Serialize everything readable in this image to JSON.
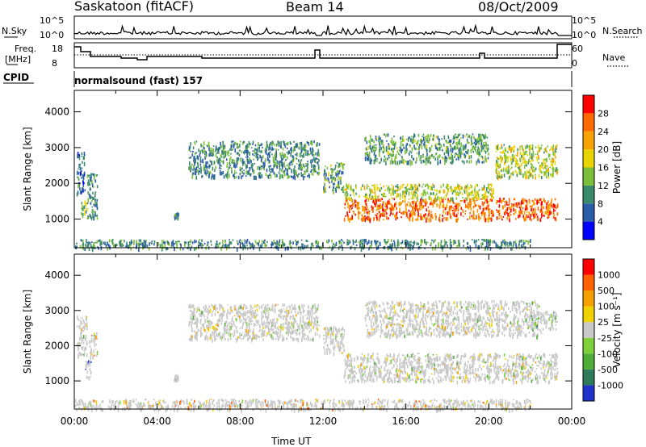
{
  "header": {
    "title": "Saskatoon (fitACF)",
    "beam": "Beam 14",
    "date": "08/Oct/2009"
  },
  "top_panel": {
    "left_label": "N.Sky",
    "right_label": "N.Search",
    "left_ticks": [
      "10^5",
      "10^0"
    ],
    "right_ticks": [
      "10^5",
      "10^0"
    ]
  },
  "freq_panel": {
    "left_label_line1": "Freq.",
    "left_label_line2": "[MHz]",
    "right_label": "Nave",
    "left_ticks": [
      "18",
      "8"
    ],
    "right_ticks": [
      "60",
      "0"
    ]
  },
  "cpid": {
    "label": "CPID",
    "value": "normalsound (fast) 157"
  },
  "colors": {
    "power_scale": [
      "#0000ff",
      "#2b5ca8",
      "#3c8a6e",
      "#7bbf3a",
      "#e8d400",
      "#f7a200",
      "#ff6a00",
      "#ff0000"
    ],
    "velocity_scale": [
      "#2233cc",
      "#2f7a5a",
      "#4fae3a",
      "#7ed13c",
      "#c8c8c8",
      "#f0d200",
      "#f5a000",
      "#ff6000",
      "#ff0000"
    ]
  },
  "chart_data": [
    {
      "type": "heatmap",
      "name": "power",
      "ylabel": "Slant Range [km]",
      "yticks": [
        1000,
        2000,
        3000,
        4000
      ],
      "ylim": [
        200,
        4600
      ],
      "xlim": [
        "00:00",
        "24:00"
      ],
      "colorbar_label": "Power [dB]",
      "colorbar_ticks": [
        4,
        8,
        12,
        16,
        20,
        24,
        28
      ],
      "regions": [
        {
          "t0": 0.1,
          "t1": 0.5,
          "r0": 1700,
          "r1": 2900,
          "level": 0.25
        },
        {
          "t0": 0.3,
          "t1": 0.6,
          "r0": 1150,
          "r1": 1550,
          "level": 0.4
        },
        {
          "t0": 0.6,
          "t1": 1.1,
          "r0": 1000,
          "r1": 2300,
          "level": 0.3
        },
        {
          "t0": 4.8,
          "t1": 5.0,
          "r0": 1050,
          "r1": 1200,
          "level": 0.3
        },
        {
          "t0": 5.5,
          "t1": 11.8,
          "r0": 2200,
          "r1": 3200,
          "level": 0.3
        },
        {
          "t0": 12.0,
          "t1": 13.0,
          "r0": 1800,
          "r1": 2600,
          "level": 0.35
        },
        {
          "t0": 13.0,
          "t1": 20.2,
          "r0": 1000,
          "r1": 1600,
          "level": 0.8
        },
        {
          "t0": 13.0,
          "t1": 20.2,
          "r0": 1600,
          "r1": 2000,
          "level": 0.5
        },
        {
          "t0": 14.0,
          "t1": 20.0,
          "r0": 2600,
          "r1": 3400,
          "level": 0.35
        },
        {
          "t0": 20.3,
          "t1": 23.3,
          "r0": 1000,
          "r1": 1600,
          "level": 0.85
        },
        {
          "t0": 20.3,
          "t1": 23.3,
          "r0": 2200,
          "r1": 3100,
          "level": 0.5
        },
        {
          "t0": 0.0,
          "t1": 22.0,
          "r0": 200,
          "r1": 450,
          "level": 0.3
        }
      ]
    },
    {
      "type": "heatmap",
      "name": "velocity",
      "ylabel": "Slant Range [km]",
      "yticks": [
        1000,
        2000,
        3000,
        4000
      ],
      "ylim": [
        200,
        4600
      ],
      "xlim": [
        "00:00",
        "24:00"
      ],
      "xticks": [
        "00:00",
        "04:00",
        "08:00",
        "12:00",
        "16:00",
        "20:00",
        "00:00"
      ],
      "xlabel": "Time UT",
      "colorbar_label": "Velocity [m s⁻¹]",
      "colorbar_ticks": [
        1000,
        500,
        100,
        25,
        -25,
        -100,
        -500,
        -1000
      ],
      "regions": [
        {
          "t0": 0.1,
          "t1": 0.6,
          "r0": 1700,
          "r1": 2900,
          "level": 0.5
        },
        {
          "t0": 0.5,
          "t1": 0.8,
          "r0": 1100,
          "r1": 1600,
          "level": 0.2
        },
        {
          "t0": 0.7,
          "t1": 1.1,
          "r0": 1700,
          "r1": 2400,
          "level": 0.6
        },
        {
          "t0": 4.8,
          "t1": 5.0,
          "r0": 1050,
          "r1": 1200,
          "level": 0.2
        },
        {
          "t0": 5.5,
          "t1": 11.8,
          "r0": 2200,
          "r1": 3200,
          "level": 0.5
        },
        {
          "t0": 12.0,
          "t1": 13.0,
          "r0": 1800,
          "r1": 2600,
          "level": 0.5
        },
        {
          "t0": 13.0,
          "t1": 23.3,
          "r0": 1000,
          "r1": 1800,
          "level": 0.5
        },
        {
          "t0": 14.0,
          "t1": 22.5,
          "r0": 2300,
          "r1": 3300,
          "level": 0.5
        },
        {
          "t0": 22.0,
          "t1": 23.3,
          "r0": 2500,
          "r1": 3000,
          "level": 0.25
        },
        {
          "t0": 0.0,
          "t1": 22.0,
          "r0": 200,
          "r1": 500,
          "level": 0.65
        }
      ]
    }
  ]
}
